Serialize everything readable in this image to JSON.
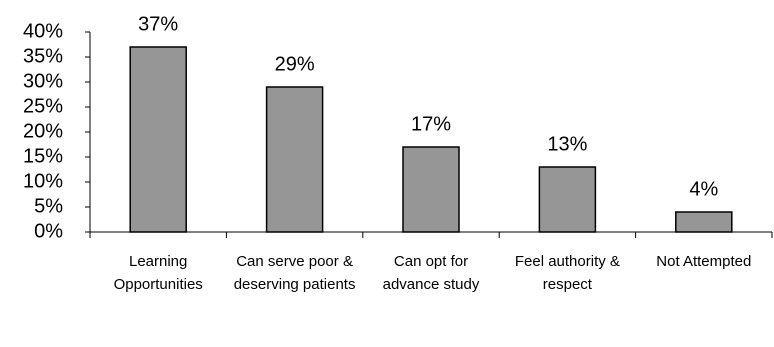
{
  "chart_data": {
    "type": "bar",
    "categories": [
      "Learning Opportunities",
      "Can serve poor & deserving patients",
      "Can opt for advance study",
      "Feel authority & respect",
      "Not Attempted"
    ],
    "values": [
      37,
      29,
      17,
      13,
      4
    ],
    "value_labels": [
      "37%",
      "29%",
      "17%",
      "13%",
      "4%"
    ],
    "color": "#969696",
    "ylim": [
      0,
      40
    ],
    "yticks": [
      {
        "value": 0,
        "label": "0%"
      },
      {
        "value": 5,
        "label": "5%"
      },
      {
        "value": 10,
        "label": "10%"
      },
      {
        "value": 15,
        "label": "15%"
      },
      {
        "value": 20,
        "label": "20%"
      },
      {
        "value": 25,
        "label": "25%"
      },
      {
        "value": 30,
        "label": "30%"
      },
      {
        "value": 35,
        "label": "35%"
      },
      {
        "value": 40,
        "label": "40%"
      }
    ],
    "grid": false
  }
}
